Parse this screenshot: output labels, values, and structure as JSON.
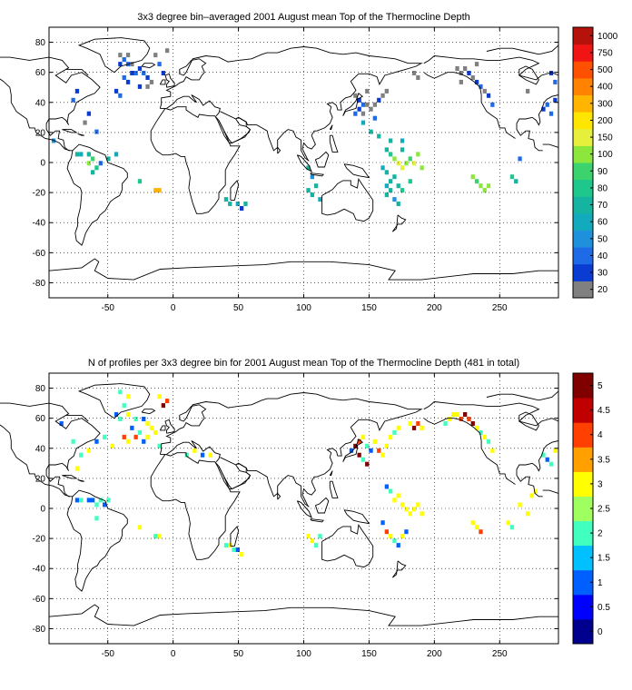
{
  "panel_top": {
    "title": "3x3 degree bin–averaged 2001 August mean Top of the Thermocline Depth",
    "colorbar_ticks": [
      "20",
      "30",
      "40",
      "50",
      "60",
      "70",
      "80",
      "90",
      "100",
      "150",
      "200",
      "300",
      "400",
      "500",
      "750",
      "1000"
    ],
    "colorbar_colors": [
      "#808080",
      "#0a3cd2",
      "#1f6ae6",
      "#1e90dc",
      "#14aabe",
      "#14b4a0",
      "#1ec88c",
      "#3cd26e",
      "#8ce63c",
      "#e6f03c",
      "#ffe600",
      "#ffb400",
      "#ff8200",
      "#ff5000",
      "#f01414",
      "#b4120a"
    ]
  },
  "panel_bottom": {
    "title": "N of profiles per 3x3 degree bin for 2001 August mean Top of the Thermocline Depth  (481 in total)",
    "colorbar_ticks": [
      "0",
      "0.5",
      "1",
      "1.5",
      "2",
      "2.5",
      "3",
      "3.5",
      "4",
      "4.5",
      "5"
    ],
    "colorbar_colors": [
      "#00008f",
      "#0000ff",
      "#0060ff",
      "#00c0ff",
      "#40ffbf",
      "#a0ff60",
      "#ffff00",
      "#ffa000",
      "#ff4000",
      "#c00000",
      "#800000"
    ]
  },
  "x_ticks": [
    "-50",
    "0",
    "50",
    "100",
    "150",
    "200",
    "250"
  ],
  "y_ticks": [
    "80",
    "60",
    "40",
    "20",
    "0",
    "-20",
    "-40",
    "-60",
    "-80"
  ],
  "x_range": [
    -95,
    295
  ],
  "y_range": [
    -90,
    90
  ],
  "grid": true
}
